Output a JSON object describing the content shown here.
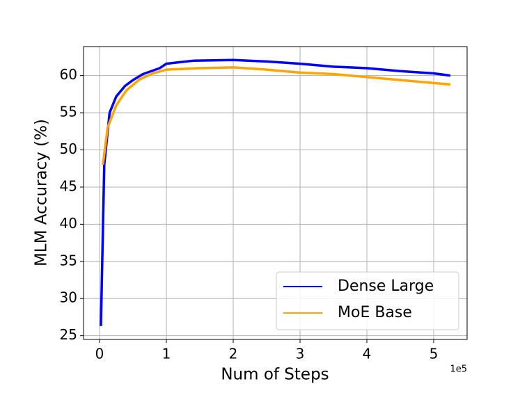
{
  "chart_data": {
    "type": "line",
    "x_label": "Num of Steps",
    "y_label": "MLM Accuracy (%)",
    "x_offset_label": "1e5",
    "xlim": [
      -24000,
      550000
    ],
    "ylim": [
      24.5,
      63.9
    ],
    "xticks": [
      {
        "value": 0,
        "label": "0"
      },
      {
        "value": 100000,
        "label": "1"
      },
      {
        "value": 200000,
        "label": "2"
      },
      {
        "value": 300000,
        "label": "3"
      },
      {
        "value": 400000,
        "label": "4"
      },
      {
        "value": 500000,
        "label": "5"
      }
    ],
    "yticks": [
      25,
      30,
      35,
      40,
      45,
      50,
      55,
      60
    ],
    "grid": true,
    "legend": "lower right",
    "series": [
      {
        "name": "Dense Large",
        "color": "#0000ff",
        "x": [
          2000,
          7000,
          15000,
          25000,
          38000,
          50000,
          65000,
          90000,
          100000,
          140000,
          200000,
          250000,
          300000,
          350000,
          400000,
          450000,
          500000,
          525000
        ],
        "values": [
          26.3,
          48,
          55,
          57.2,
          58.6,
          59.4,
          60.2,
          61.0,
          61.6,
          62.0,
          62.1,
          61.9,
          61.6,
          61.2,
          61.0,
          60.6,
          60.3,
          60.0
        ]
      },
      {
        "name": "MoE Base",
        "color": "#ffa500",
        "x": [
          5000,
          12000,
          25000,
          40000,
          60000,
          80000,
          100000,
          150000,
          200000,
          250000,
          300000,
          350000,
          400000,
          450000,
          500000,
          525000
        ],
        "values": [
          48,
          53,
          56,
          58,
          59.5,
          60.3,
          60.8,
          61.0,
          61.1,
          60.8,
          60.4,
          60.2,
          59.8,
          59.4,
          59.0,
          58.8
        ]
      }
    ]
  }
}
